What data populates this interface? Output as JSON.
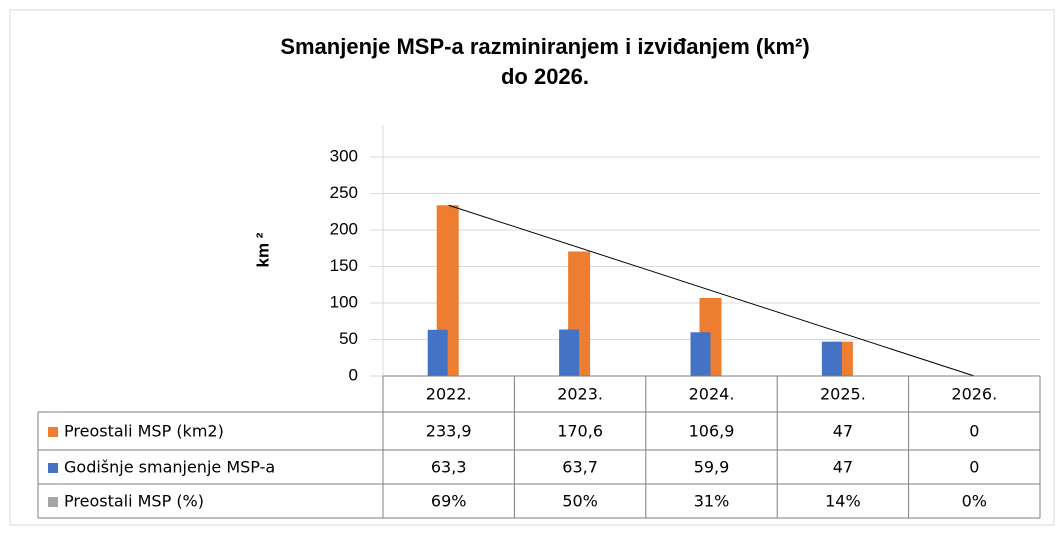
{
  "chart_data": {
    "type": "bar",
    "title": [
      "Smanjenje MSP-a razminiranjem i izviđanjem (km²)",
      "do 2026."
    ],
    "y_label": "km ²",
    "categories": [
      "2022.",
      "2023.",
      "2024.",
      "2025.",
      "2026."
    ],
    "series": [
      {
        "name": "Preostali MSP (km2)",
        "color": "#ed7d31",
        "values": [
          233.9,
          170.6,
          106.9,
          47,
          0
        ],
        "value_labels": [
          "233,9",
          "170,6",
          "106,9",
          "47",
          "0"
        ]
      },
      {
        "name": "Godišnje smanjenje MSP-a",
        "color": "#4472c4",
        "values": [
          63.3,
          63.7,
          59.9,
          47,
          0
        ],
        "value_labels": [
          "63,3",
          "63,7",
          "59,9",
          "47",
          "0"
        ]
      },
      {
        "name": "Preostali MSP (%)",
        "color": "#a5a5a5",
        "values": [
          69,
          50,
          31,
          14,
          0
        ],
        "value_labels": [
          "69%",
          "50%",
          "31%",
          "14%",
          "0%"
        ],
        "hidden": true
      }
    ],
    "ylim": [
      0,
      300
    ],
    "yticks": [
      0,
      50,
      100,
      150,
      200,
      250,
      300
    ],
    "grid": true,
    "trendline": true
  }
}
